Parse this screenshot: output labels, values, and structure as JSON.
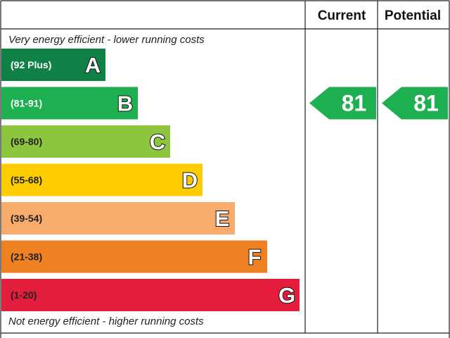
{
  "chart_data": {
    "type": "bar",
    "title": "",
    "columns": {
      "current": "Current",
      "potential": "Potential"
    },
    "top_note": "Very energy efficient - lower running costs",
    "bottom_note": "Not energy efficient - higher running costs",
    "bands": [
      {
        "letter": "A",
        "range": "(92 Plus)",
        "color": "#0f8147",
        "text_color": "#ffffff"
      },
      {
        "letter": "B",
        "range": "(81-91)",
        "color": "#1eb050",
        "text_color": "#ffffff"
      },
      {
        "letter": "C",
        "range": "(69-80)",
        "color": "#8dc53f",
        "text_color": "#222222"
      },
      {
        "letter": "D",
        "range": "(55-68)",
        "color": "#ffcc00",
        "text_color": "#222222"
      },
      {
        "letter": "E",
        "range": "(39-54)",
        "color": "#f7ac6b",
        "text_color": "#222222"
      },
      {
        "letter": "F",
        "range": "(21-38)",
        "color": "#ef8123",
        "text_color": "#222222"
      },
      {
        "letter": "G",
        "range": "(1-20)",
        "color": "#e31d3c",
        "text_color": "#222222"
      }
    ],
    "current": {
      "value": 81,
      "label": "81",
      "band": "B",
      "color": "#1eb050"
    },
    "potential": {
      "value": 81,
      "label": "81",
      "band": "B",
      "color": "#1eb050"
    },
    "grid": false,
    "legend": "none"
  }
}
